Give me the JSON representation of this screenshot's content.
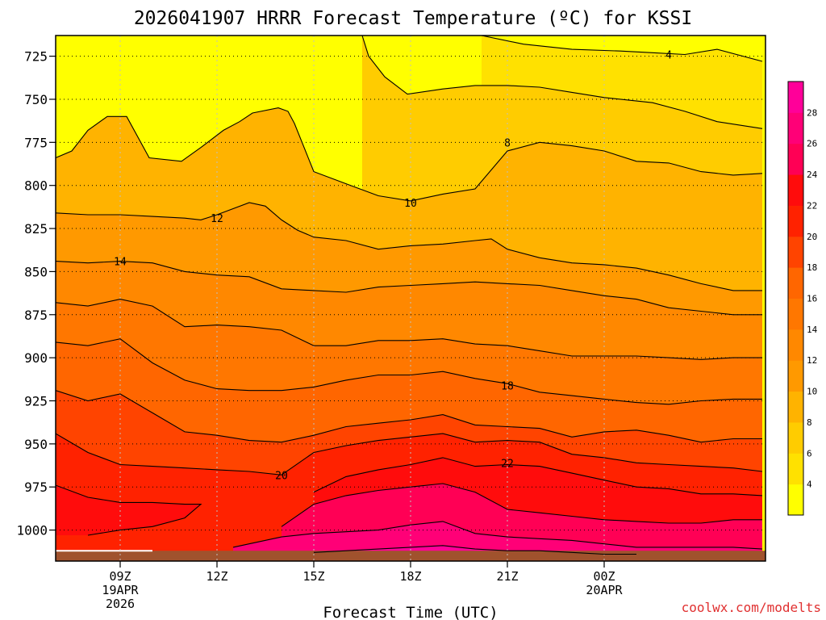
{
  "chart_data": {
    "type": "contour",
    "title": "2026041907 HRRR Forecast Temperature (ºC) for KSSI",
    "xlabel": "Forecast Time (UTC)",
    "ylabel": "",
    "credit": "coolwx.com/modelts",
    "x_hours": [
      7,
      29
    ],
    "y_pressure_range": [
      713,
      1018
    ],
    "y_ticks": [
      725,
      750,
      775,
      800,
      825,
      850,
      875,
      900,
      925,
      950,
      975,
      1000
    ],
    "x_ticks": [
      {
        "hour": 9,
        "line1": "09Z",
        "line2": "19APR",
        "line3": "2026"
      },
      {
        "hour": 12,
        "line1": "12Z",
        "line2": "",
        "line3": ""
      },
      {
        "hour": 15,
        "line1": "15Z",
        "line2": "",
        "line3": ""
      },
      {
        "hour": 18,
        "line1": "18Z",
        "line2": "",
        "line3": ""
      },
      {
        "hour": 21,
        "line1": "21Z",
        "line2": "",
        "line3": ""
      },
      {
        "hour": 24,
        "line1": "00Z",
        "line2": "20APR",
        "line3": ""
      }
    ],
    "colorbar": {
      "levels": [
        2,
        4,
        6,
        8,
        10,
        12,
        14,
        16,
        18,
        20,
        22,
        24,
        26,
        28,
        30
      ],
      "labels": [
        4,
        6,
        8,
        10,
        12,
        14,
        16,
        18,
        20,
        22,
        24,
        26,
        28
      ],
      "colors": [
        "#ffff00",
        "#ffe100",
        "#ffcc00",
        "#ffb300",
        "#ff9900",
        "#ff8800",
        "#ff7700",
        "#ff6600",
        "#ff4400",
        "#ff2200",
        "#ff0c0c",
        "#ff0055",
        "#ff0077",
        "#ff0099"
      ]
    },
    "contours": [
      {
        "value": 4,
        "label": "4",
        "label_at": [
          26.0,
          724
        ],
        "points": [
          [
            20.2,
            713
          ],
          [
            21.5,
            718
          ],
          [
            23.0,
            721
          ],
          [
            24.5,
            722
          ],
          [
            25.5,
            723
          ],
          [
            26.5,
            724
          ],
          [
            27.5,
            721
          ],
          [
            28.9,
            728
          ]
        ]
      },
      {
        "value": 6,
        "label": "",
        "label_at": null,
        "points": [
          [
            16.5,
            713
          ],
          [
            16.7,
            725
          ],
          [
            17.2,
            737
          ],
          [
            17.9,
            747
          ],
          [
            19.0,
            744
          ],
          [
            20.0,
            742
          ],
          [
            21.0,
            742
          ],
          [
            22.0,
            743
          ],
          [
            23.0,
            746
          ],
          [
            24.0,
            749
          ],
          [
            25.5,
            752
          ],
          [
            26.5,
            757
          ],
          [
            27.5,
            763
          ],
          [
            28.9,
            767
          ]
        ]
      },
      {
        "value": 8,
        "label": "8",
        "label_at": [
          21.0,
          775
        ],
        "points": [
          [
            7.0,
            784
          ],
          [
            7.5,
            780
          ],
          [
            8.0,
            768
          ],
          [
            8.6,
            760
          ],
          [
            9.2,
            760
          ],
          [
            9.9,
            784
          ],
          [
            10.9,
            786
          ],
          [
            11.5,
            778
          ],
          [
            12.2,
            768
          ],
          [
            12.7,
            763
          ],
          [
            13.1,
            758
          ],
          [
            13.9,
            755
          ],
          [
            14.2,
            757
          ],
          [
            14.4,
            764
          ],
          [
            14.7,
            778
          ],
          [
            15.0,
            792
          ],
          [
            16.0,
            799
          ],
          [
            17.0,
            806
          ],
          [
            18.0,
            809
          ],
          [
            19.0,
            805
          ],
          [
            20.0,
            802
          ],
          [
            21.0,
            780
          ],
          [
            22.0,
            775
          ],
          [
            23.0,
            777
          ],
          [
            24.0,
            780
          ],
          [
            25.0,
            786
          ],
          [
            26.0,
            787
          ],
          [
            27.0,
            792
          ],
          [
            28.0,
            794
          ],
          [
            28.9,
            793
          ]
        ]
      },
      {
        "value": 10,
        "label": "10",
        "label_at": [
          18.0,
          810
        ],
        "points": [
          [
            7.0,
            816
          ],
          [
            8.0,
            817
          ],
          [
            9.0,
            817
          ],
          [
            10.0,
            818
          ],
          [
            11.0,
            819
          ],
          [
            11.5,
            820
          ],
          [
            12.0,
            817
          ],
          [
            13.0,
            810
          ],
          [
            13.5,
            812
          ],
          [
            14.0,
            820
          ],
          [
            14.5,
            826
          ],
          [
            15.0,
            830
          ],
          [
            16.0,
            832
          ],
          [
            17.0,
            837
          ],
          [
            18.0,
            835
          ],
          [
            19.0,
            834
          ],
          [
            20.0,
            832
          ],
          [
            20.5,
            831
          ],
          [
            21.0,
            837
          ],
          [
            22.0,
            842
          ],
          [
            23.0,
            845
          ],
          [
            24.0,
            846
          ],
          [
            25.0,
            848
          ],
          [
            26.0,
            852
          ],
          [
            27.0,
            857
          ],
          [
            28.0,
            861
          ],
          [
            28.9,
            861
          ]
        ]
      },
      {
        "value": 12,
        "label": "12",
        "label_at": [
          12.0,
          819
        ],
        "points": [
          [
            7.0,
            844
          ],
          [
            8.0,
            845
          ],
          [
            9.0,
            844
          ],
          [
            10.0,
            845
          ],
          [
            11.0,
            850
          ],
          [
            12.0,
            852
          ],
          [
            13.0,
            853
          ],
          [
            14.0,
            860
          ],
          [
            15.0,
            861
          ],
          [
            16.0,
            862
          ],
          [
            17.0,
            859
          ],
          [
            18.0,
            858
          ],
          [
            19.0,
            857
          ],
          [
            20.0,
            856
          ],
          [
            21.0,
            857
          ],
          [
            22.0,
            858
          ],
          [
            23.0,
            861
          ],
          [
            24.0,
            864
          ],
          [
            25.0,
            866
          ],
          [
            26.0,
            871
          ],
          [
            27.0,
            873
          ],
          [
            28.0,
            875
          ],
          [
            28.9,
            875
          ]
        ]
      },
      {
        "value": 14,
        "label": "14",
        "label_at": [
          9.0,
          844
        ],
        "points": [
          [
            7.0,
            868
          ],
          [
            8.0,
            870
          ],
          [
            9.0,
            866
          ],
          [
            10.0,
            870
          ],
          [
            11.0,
            882
          ],
          [
            12.0,
            881
          ],
          [
            13.0,
            882
          ],
          [
            14.0,
            884
          ],
          [
            15.0,
            893
          ],
          [
            16.0,
            893
          ],
          [
            17.0,
            890
          ],
          [
            18.0,
            890
          ],
          [
            19.0,
            889
          ],
          [
            20.0,
            892
          ],
          [
            21.0,
            893
          ],
          [
            22.0,
            896
          ],
          [
            23.0,
            899
          ],
          [
            24.0,
            899
          ],
          [
            25.0,
            899
          ],
          [
            26.0,
            900
          ],
          [
            27.0,
            901
          ],
          [
            28.0,
            900
          ],
          [
            28.9,
            900
          ]
        ]
      },
      {
        "value": 16,
        "label": "",
        "label_at": null,
        "points": [
          [
            7.0,
            891
          ],
          [
            8.0,
            893
          ],
          [
            9.0,
            889
          ],
          [
            10.0,
            903
          ],
          [
            11.0,
            913
          ],
          [
            12.0,
            918
          ],
          [
            13.0,
            919
          ],
          [
            14.0,
            919
          ],
          [
            15.0,
            917
          ],
          [
            16.0,
            913
          ],
          [
            17.0,
            910
          ],
          [
            18.0,
            910
          ],
          [
            19.0,
            908
          ],
          [
            20.0,
            912
          ],
          [
            21.0,
            915
          ],
          [
            22.0,
            920
          ],
          [
            23.0,
            922
          ],
          [
            24.0,
            924
          ],
          [
            25.0,
            926
          ],
          [
            26.0,
            927
          ],
          [
            27.0,
            925
          ],
          [
            28.0,
            924
          ],
          [
            28.9,
            924
          ]
        ]
      },
      {
        "value": 18,
        "label": "18",
        "label_at": [
          21.0,
          916
        ],
        "points": [
          [
            7.0,
            919
          ],
          [
            8.0,
            925
          ],
          [
            9.0,
            921
          ],
          [
            10.0,
            932
          ],
          [
            11.0,
            943
          ],
          [
            12.0,
            945
          ],
          [
            13.0,
            948
          ],
          [
            14.0,
            949
          ],
          [
            15.0,
            945
          ],
          [
            16.0,
            940
          ],
          [
            17.0,
            938
          ],
          [
            18.0,
            936
          ],
          [
            19.0,
            933
          ],
          [
            20.0,
            939
          ],
          [
            21.0,
            940
          ],
          [
            22.0,
            941
          ],
          [
            23.0,
            946
          ],
          [
            24.0,
            943
          ],
          [
            25.0,
            942
          ],
          [
            26.0,
            945
          ],
          [
            27.0,
            949
          ],
          [
            28.0,
            947
          ],
          [
            28.9,
            947
          ]
        ]
      },
      {
        "value": 20,
        "label": "20",
        "label_at": [
          14.0,
          968
        ],
        "points": [
          [
            7.0,
            944
          ],
          [
            8.0,
            955
          ],
          [
            9.0,
            962
          ],
          [
            10.0,
            963
          ],
          [
            11.0,
            964
          ],
          [
            12.0,
            965
          ],
          [
            13.0,
            966
          ],
          [
            14.0,
            968
          ],
          [
            15.0,
            955
          ],
          [
            16.0,
            951
          ],
          [
            17.0,
            948
          ],
          [
            18.0,
            946
          ],
          [
            19.0,
            944
          ],
          [
            20.0,
            949
          ],
          [
            21.0,
            948
          ],
          [
            22.0,
            949
          ],
          [
            23.0,
            956
          ],
          [
            24.0,
            958
          ],
          [
            25.0,
            961
          ],
          [
            26.0,
            962
          ],
          [
            27.0,
            963
          ],
          [
            28.0,
            964
          ],
          [
            28.9,
            966
          ]
        ]
      },
      {
        "value": 22,
        "label": "22",
        "label_at": [
          21.0,
          961
        ],
        "points": [
          [
            7.0,
            974
          ],
          [
            8.0,
            981
          ],
          [
            9.0,
            984
          ],
          [
            10.0,
            984
          ],
          [
            11.0,
            985
          ],
          [
            11.5,
            985
          ],
          [
            11.0,
            993
          ],
          [
            10.0,
            998
          ],
          [
            9.0,
            1000
          ],
          [
            8.0,
            1003
          ]
        ]
      },
      {
        "value": 22.01,
        "label": "",
        "label_at": null,
        "points": [
          [
            15.0,
            978
          ],
          [
            16.0,
            969
          ],
          [
            17.0,
            965
          ],
          [
            18.0,
            962
          ],
          [
            19.0,
            958
          ],
          [
            20.0,
            963
          ],
          [
            21.0,
            962
          ],
          [
            22.0,
            963
          ],
          [
            23.0,
            967
          ],
          [
            24.0,
            971
          ],
          [
            25.0,
            975
          ],
          [
            26.0,
            976
          ],
          [
            27.0,
            979
          ],
          [
            28.0,
            979
          ],
          [
            28.9,
            980
          ]
        ]
      },
      {
        "value": 24,
        "label": "",
        "label_at": null,
        "points": [
          [
            14.0,
            998
          ],
          [
            15.0,
            985
          ],
          [
            16.0,
            980
          ],
          [
            17.0,
            977
          ],
          [
            18.0,
            975
          ],
          [
            19.0,
            973
          ],
          [
            20.0,
            978
          ],
          [
            21.0,
            988
          ],
          [
            22.0,
            990
          ],
          [
            23.0,
            992
          ],
          [
            24.0,
            994
          ],
          [
            25.0,
            995
          ],
          [
            26.0,
            996
          ],
          [
            27.0,
            996
          ],
          [
            28.0,
            994
          ],
          [
            28.9,
            994
          ]
        ]
      },
      {
        "value": 26,
        "label": "",
        "label_at": null,
        "points": [
          [
            12.5,
            1010
          ],
          [
            14.0,
            1004
          ],
          [
            15.0,
            1002
          ],
          [
            16.0,
            1001
          ],
          [
            17.0,
            1000
          ],
          [
            18.0,
            997
          ],
          [
            19.0,
            995
          ],
          [
            20.0,
            1002
          ],
          [
            21.0,
            1004
          ],
          [
            22.0,
            1005
          ],
          [
            23.0,
            1006
          ],
          [
            24.0,
            1008
          ],
          [
            25.0,
            1010
          ],
          [
            26.0,
            1010
          ],
          [
            27.0,
            1010
          ],
          [
            28.0,
            1010
          ],
          [
            28.9,
            1011
          ]
        ]
      },
      {
        "value": 28,
        "label": "",
        "label_at": null,
        "points": [
          [
            15.0,
            1013
          ],
          [
            16.0,
            1012
          ],
          [
            17.0,
            1011
          ],
          [
            18.0,
            1010
          ],
          [
            19.0,
            1009
          ],
          [
            20.0,
            1011
          ],
          [
            21.0,
            1012
          ],
          [
            22.0,
            1012
          ],
          [
            23.0,
            1013
          ],
          [
            24.0,
            1014
          ],
          [
            25.0,
            1014
          ]
        ]
      }
    ],
    "ground_pressure": 1012
  }
}
